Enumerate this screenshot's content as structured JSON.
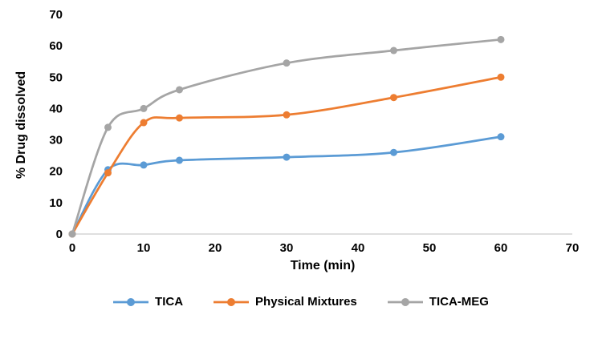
{
  "chart_data": {
    "type": "line",
    "title": "",
    "xlabel": "Time (min)",
    "ylabel": "% Drug dissolved",
    "x": [
      0,
      5,
      10,
      15,
      30,
      45,
      60
    ],
    "series": [
      {
        "name": "TICA",
        "color": "#5B9BD5",
        "values": [
          0,
          20.5,
          22,
          23.5,
          24.5,
          26,
          31
        ]
      },
      {
        "name": "Physical Mixtures",
        "color": "#ED7D31",
        "values": [
          0,
          19.5,
          35.5,
          37,
          38,
          43.5,
          50
        ]
      },
      {
        "name": "TICA-MEG",
        "color": "#A5A5A5",
        "values": [
          0,
          34,
          40,
          46,
          54.5,
          58.5,
          62
        ]
      }
    ],
    "xlim": [
      0,
      70
    ],
    "ylim": [
      0,
      70
    ],
    "xticks": [
      0,
      10,
      20,
      30,
      40,
      50,
      60,
      70
    ],
    "yticks": [
      0,
      10,
      20,
      30,
      40,
      50,
      60,
      70
    ],
    "grid": false,
    "legend_position": "bottom",
    "axis_line_color": "#BFBFBF"
  }
}
